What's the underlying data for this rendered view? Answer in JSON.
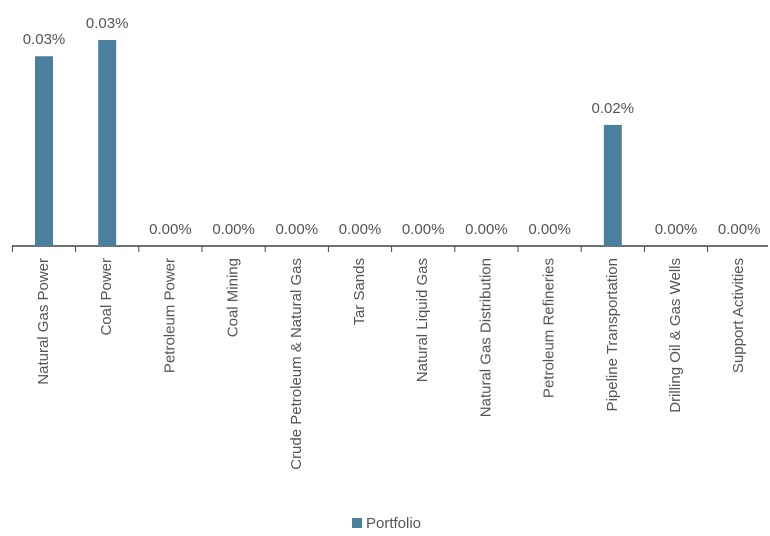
{
  "chart_data": {
    "type": "bar",
    "categories": [
      "Natural Gas Power",
      "Coal Power",
      "Petroleum Power",
      "Coal Mining",
      "Crude Petroleum & Natural Gas",
      "Tar Sands",
      "Natural Liquid Gas",
      "Natural Gas Distribution",
      "Petroleum Refineries",
      "Pipeline Transportation",
      "Drilling Oil & Gas Wells",
      "Support Activities"
    ],
    "series": [
      {
        "name": "Portfolio",
        "color": "#4a7f9e",
        "values": [
          0.0304,
          0.033,
          0,
          0,
          0,
          0,
          0,
          0,
          0,
          0.0194,
          0,
          0
        ],
        "value_labels": [
          "0.03%",
          "0.03%",
          "0.00%",
          "0.00%",
          "0.00%",
          "0.00%",
          "0.00%",
          "0.00%",
          "0.00%",
          "0.02%",
          "0.00%",
          "0.00%"
        ]
      }
    ],
    "legend": "bottom"
  }
}
